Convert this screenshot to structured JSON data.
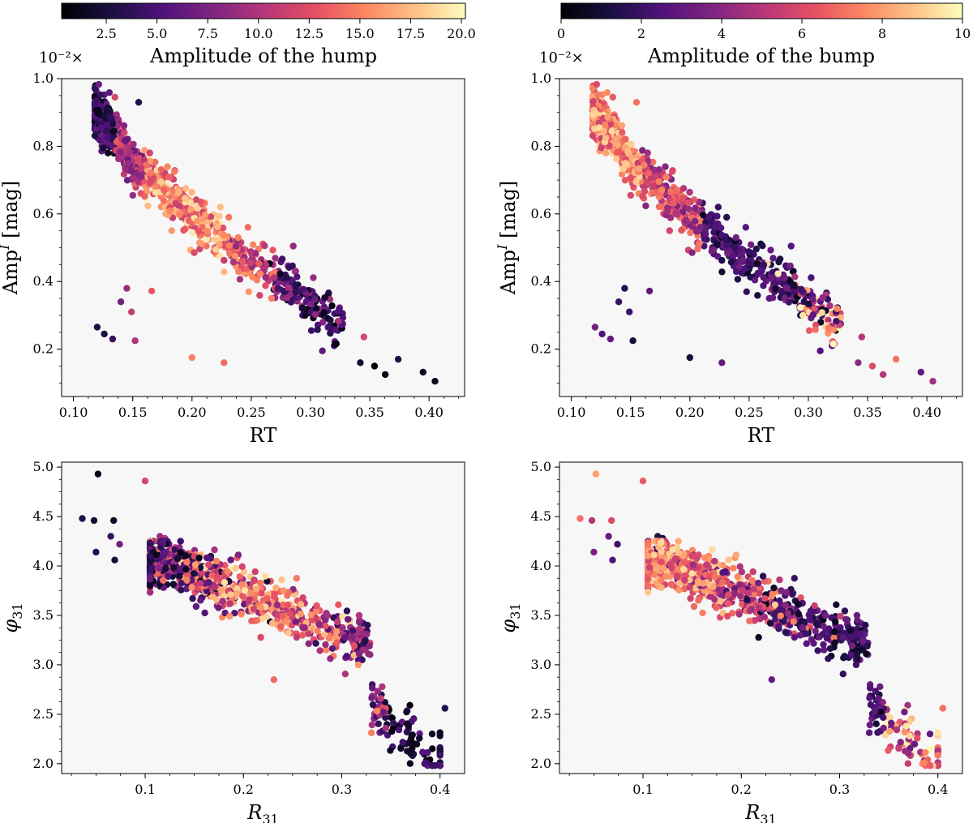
{
  "chart_data": [
    {
      "type": "colorbar",
      "id": "cbar-hump",
      "multiplier": "10⁻²×",
      "title": "Amplitude of the hump",
      "range": [
        0.3,
        20.2
      ],
      "ticks": [
        2.5,
        5.0,
        7.5,
        10.0,
        12.5,
        15.0,
        17.5,
        20.0
      ],
      "tick_labels": [
        "2.5",
        "5.0",
        "7.5",
        "10.0",
        "12.5",
        "15.0",
        "17.5",
        "20.0"
      ]
    },
    {
      "type": "colorbar",
      "id": "cbar-bump",
      "multiplier": "10⁻²×",
      "title": "Amplitude of the bump",
      "range": [
        0,
        10
      ],
      "ticks": [
        0,
        2,
        4,
        6,
        8,
        10
      ],
      "tick_labels": [
        "0",
        "2",
        "4",
        "6",
        "8",
        "10"
      ]
    },
    {
      "type": "scatter",
      "id": "rt-amp-hump",
      "xlabel": "RT",
      "ylabel": "Amp",
      "ylabel_sup": "I",
      "ylabel_unit": " [mag]",
      "xlim": [
        0.09,
        0.43
      ],
      "ylim": [
        0.06,
        1.0
      ],
      "xticks": [
        0.1,
        0.15,
        0.2,
        0.25,
        0.3,
        0.35,
        0.4
      ],
      "xtick_labels": [
        "0.10",
        "0.15",
        "0.20",
        "0.25",
        "0.30",
        "0.35",
        "0.40"
      ],
      "yticks": [
        0.2,
        0.4,
        0.6,
        0.8,
        1.0
      ],
      "ytick_labels": [
        "0.2",
        "0.4",
        "0.6",
        "0.8",
        "1.0"
      ],
      "color_by": "hump",
      "colormap": "magma"
    },
    {
      "type": "scatter",
      "id": "rt-amp-bump",
      "xlabel": "RT",
      "ylabel": "Amp",
      "ylabel_sup": "I",
      "ylabel_unit": " [mag]",
      "xlim": [
        0.09,
        0.43
      ],
      "ylim": [
        0.06,
        1.0
      ],
      "xticks": [
        0.1,
        0.15,
        0.2,
        0.25,
        0.3,
        0.35,
        0.4
      ],
      "xtick_labels": [
        "0.10",
        "0.15",
        "0.20",
        "0.25",
        "0.30",
        "0.35",
        "0.40"
      ],
      "yticks": [
        0.2,
        0.4,
        0.6,
        0.8,
        1.0
      ],
      "ytick_labels": [
        "0.2",
        "0.4",
        "0.6",
        "0.8",
        "1.0"
      ],
      "color_by": "bump",
      "colormap": "magma"
    },
    {
      "type": "scatter",
      "id": "r31-phi31-hump",
      "xlabel": "R",
      "xlabel_sub": "31",
      "ylabel": "φ",
      "ylabel_sub": "31",
      "xlim": [
        0.015,
        0.425
      ],
      "ylim": [
        1.9,
        5.05
      ],
      "xticks": [
        0.1,
        0.2,
        0.3,
        0.4
      ],
      "xtick_labels": [
        "0.1",
        "0.2",
        "0.3",
        "0.4"
      ],
      "yticks": [
        2.0,
        2.5,
        3.0,
        3.5,
        4.0,
        4.5,
        5.0
      ],
      "ytick_labels": [
        "2.0",
        "2.5",
        "3.0",
        "3.5",
        "4.0",
        "4.5",
        "5.0"
      ],
      "color_by": "hump",
      "colormap": "magma"
    },
    {
      "type": "scatter",
      "id": "r31-phi31-bump",
      "xlabel": "R",
      "xlabel_sub": "31",
      "ylabel": "φ",
      "ylabel_sub": "31",
      "xlim": [
        0.015,
        0.425
      ],
      "ylim": [
        1.9,
        5.05
      ],
      "xticks": [
        0.1,
        0.2,
        0.3,
        0.4
      ],
      "xtick_labels": [
        "0.1",
        "0.2",
        "0.3",
        "0.4"
      ],
      "yticks": [
        2.0,
        2.5,
        3.0,
        3.5,
        4.0,
        4.5,
        5.0
      ],
      "ytick_labels": [
        "2.0",
        "2.5",
        "3.0",
        "3.5",
        "4.0",
        "4.5",
        "5.0"
      ],
      "color_by": "bump",
      "colormap": "magma"
    }
  ],
  "stars": [
    {
      "rt": 0.124,
      "amp": 0.915,
      "r31": 0.052,
      "phi": 4.93,
      "hump": 1.0,
      "bump": 8.0
    },
    {
      "rt": 0.135,
      "amp": 0.945,
      "r31": 0.1,
      "phi": 4.86,
      "hump": 12.0,
      "bump": 6.5
    },
    {
      "rt": 0.155,
      "amp": 0.93,
      "r31": 0.036,
      "phi": 4.48,
      "hump": 3.0,
      "bump": 7.0
    },
    {
      "rt": 0.118,
      "amp": 0.87,
      "r31": 0.048,
      "phi": 4.46,
      "hump": 2.0,
      "bump": 5.0
    },
    {
      "rt": 0.121,
      "amp": 0.84,
      "r31": 0.068,
      "phi": 4.46,
      "hump": 1.5,
      "bump": 6.0
    },
    {
      "rt": 0.12,
      "amp": 0.265,
      "r31": 0.05,
      "phi": 4.14,
      "hump": 3.0,
      "bump": 3.5
    },
    {
      "rt": 0.126,
      "amp": 0.245,
      "r31": 0.069,
      "phi": 4.06,
      "hump": 2.5,
      "bump": 2.5
    },
    {
      "rt": 0.133,
      "amp": 0.23,
      "r31": 0.065,
      "phi": 4.3,
      "hump": 4.0,
      "bump": 3.0
    },
    {
      "rt": 0.14,
      "amp": 0.34,
      "r31": 0.074,
      "phi": 4.22,
      "hump": 7.0,
      "bump": 2.0
    },
    {
      "rt": 0.145,
      "amp": 0.38,
      "r31": 0.115,
      "phi": 4.3,
      "hump": 9.0,
      "bump": 1.5
    },
    {
      "rt": 0.149,
      "amp": 0.31,
      "r31": 0.108,
      "phi": 4.25,
      "hump": 11.0,
      "bump": 2.0
    },
    {
      "rt": 0.152,
      "amp": 0.225,
      "r31": 0.12,
      "phi": 4.28,
      "hump": 10.0,
      "bump": 1.0
    },
    {
      "rt": 0.166,
      "amp": 0.372,
      "r31": 0.149,
      "phi": 4.1,
      "hump": 13.0,
      "bump": 3.0
    },
    {
      "rt": 0.2,
      "amp": 0.175,
      "r31": 0.137,
      "phi": 3.9,
      "hump": 15.0,
      "bump": 1.0
    },
    {
      "rt": 0.227,
      "amp": 0.16,
      "r31": 0.231,
      "phi": 2.85,
      "hump": 14.0,
      "bump": 3.0
    },
    {
      "rt": 0.345,
      "amp": 0.236,
      "r31": 0.261,
      "phi": 3.37,
      "hump": 12.0,
      "bump": 5.0
    },
    {
      "rt": 0.374,
      "amp": 0.17,
      "r31": 0.405,
      "phi": 2.56,
      "hump": 3.0,
      "bump": 7.0
    },
    {
      "rt": 0.395,
      "amp": 0.132,
      "r31": 0.392,
      "phi": 2.3,
      "hump": 1.5,
      "bump": 3.0
    },
    {
      "rt": 0.405,
      "amp": 0.105,
      "r31": 0.386,
      "phi": 2.03,
      "hump": 1.0,
      "bump": 4.5
    },
    {
      "rt": 0.363,
      "amp": 0.125,
      "r31": 0.359,
      "phi": 2.39,
      "hump": 1.0,
      "bump": 5.0
    },
    {
      "rt": 0.354,
      "amp": 0.15,
      "r31": 0.374,
      "phi": 2.2,
      "hump": 0.5,
      "bump": 6.0
    },
    {
      "rt": 0.342,
      "amp": 0.16,
      "r31": 0.344,
      "phi": 2.62,
      "hump": 2.0,
      "bump": 4.0
    },
    {
      "rt": 0.32,
      "amp": 0.21,
      "r31": 0.331,
      "phi": 2.8,
      "hump": 4.0,
      "bump": 3.0
    },
    {
      "rt": 0.31,
      "amp": 0.195,
      "r31": 0.312,
      "phi": 3.12,
      "hump": 6.0,
      "bump": 2.5
    }
  ]
}
